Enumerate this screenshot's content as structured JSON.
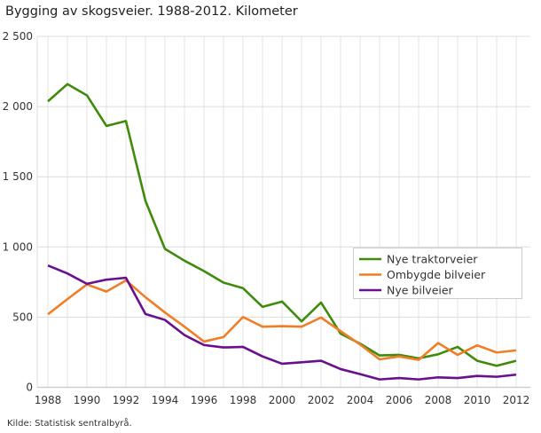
{
  "chart_data": {
    "type": "line",
    "title": "Bygging av skogsveier. 1988-2012. Kilometer",
    "source": "Kilde: Statistisk sentralbyrå.",
    "x": [
      1988,
      1989,
      1990,
      1991,
      1992,
      1993,
      1994,
      1995,
      1996,
      1997,
      1998,
      1999,
      2000,
      2001,
      2002,
      2003,
      2004,
      2005,
      2006,
      2007,
      2008,
      2009,
      2010,
      2011,
      2012
    ],
    "xticks": [
      "1988",
      "1990",
      "1992",
      "1994",
      "1996",
      "1998",
      "2000",
      "2002",
      "2004",
      "2006",
      "2008",
      "2010",
      "2012"
    ],
    "yticks": [
      "0",
      "500",
      "1 000",
      "1 500",
      "2 000",
      "2 500"
    ],
    "ylim": [
      0,
      2500
    ],
    "grid": true,
    "legend": "right-middle",
    "series": [
      {
        "name": "Nye traktorveier",
        "color": "#3f8b0c",
        "values": [
          2037,
          2160,
          2080,
          1862,
          1897,
          1328,
          986,
          902,
          828,
          746,
          706,
          573,
          611,
          470,
          604,
          383,
          311,
          227,
          231,
          206,
          235,
          288,
          189,
          153,
          189
        ]
      },
      {
        "name": "Ombygde bilveier",
        "color": "#f07e26",
        "values": [
          520,
          628,
          733,
          682,
          762,
          642,
          533,
          432,
          326,
          358,
          501,
          432,
          436,
          432,
          497,
          400,
          305,
          199,
          220,
          195,
          315,
          231,
          299,
          248,
          263
        ]
      },
      {
        "name": "Nye bilveier",
        "color": "#6a0f8e",
        "values": [
          868,
          811,
          737,
          767,
          780,
          522,
          480,
          372,
          301,
          284,
          288,
          220,
          168,
          178,
          189,
          130,
          94,
          56,
          66,
          56,
          71,
          66,
          81,
          75,
          90
        ]
      }
    ]
  }
}
